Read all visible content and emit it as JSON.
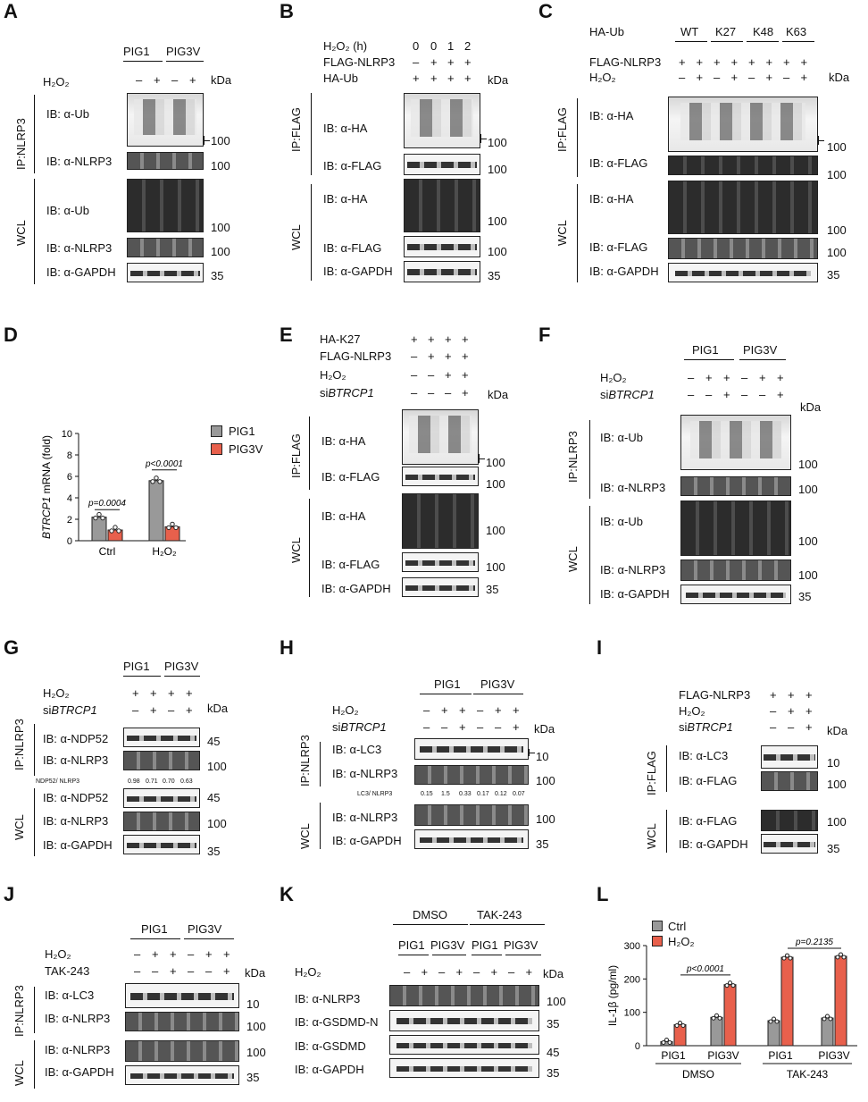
{
  "panels": {
    "A": "A",
    "B": "B",
    "C": "C",
    "D": "D",
    "E": "E",
    "F": "F",
    "G": "G",
    "H": "H",
    "I": "I",
    "J": "J",
    "K": "K",
    "L": "L"
  },
  "common": {
    "kda": "kDa",
    "h2o2": "H₂O₂",
    "m": "–",
    "p": "+",
    "w100": "100",
    "w35": "35",
    "w45": "45",
    "w10": "10",
    "pig1": "PIG1",
    "pig3v": "PIG3V",
    "ip_nlrp3": "IP:NLRP3",
    "ip_flag": "IP:FLAG",
    "wcl": "WCL",
    "ib_ub": "IB: α-Ub",
    "ib_nlrp3": "IB: α-NLRP3",
    "ib_gapdh": "IB: α-GAPDH",
    "ib_ha": "IB: α-HA",
    "ib_flag": "IB: α-FLAG",
    "ib_lc3": "IB: α-LC3",
    "ib_ndp52": "IB: α-NDP52",
    "ib_gsdmdn": "IB: α-GSDMD-N",
    "ib_gsdmd": "IB: α-GSDMD",
    "flag_nlrp3": "FLAG-NLRP3",
    "ha_ub": "HA-Ub",
    "ha_k27": "HA-K27",
    "sibtrcp1_pre": "si",
    "sibtrcp1_gene": "BTRCP1",
    "tak243": "TAK-243",
    "dmso": "DMSO"
  },
  "B": {
    "h2o2_h": "H₂O₂ (h)",
    "times": [
      "0",
      "0",
      "1",
      "2"
    ]
  },
  "C": {
    "groups": [
      "WT",
      "K27",
      "K48",
      "K63"
    ]
  },
  "G": {
    "ratio_label": "NDP52/ NLRP3",
    "ratios": [
      "0.98",
      "0.71",
      "0.70",
      "0.63"
    ]
  },
  "H": {
    "ratio_label": "LC3/ NLRP3",
    "ratios": [
      "0.15",
      "1.5",
      "0.33",
      "0.17",
      "0.12",
      "0.07"
    ]
  },
  "chart_data": [
    {
      "panel": "D",
      "type": "bar",
      "categories": [
        "Ctrl",
        "H₂O₂"
      ],
      "series": [
        {
          "name": "PIG1",
          "values": [
            2.2,
            5.6
          ],
          "color": "#999999"
        },
        {
          "name": "PIG3V",
          "values": [
            1.0,
            1.3
          ],
          "color": "#e8604c"
        }
      ],
      "ylabel_gene": "BTRCP1",
      "ylabel_rest": " mRNA (fold)",
      "ylim": [
        0,
        10
      ],
      "yticks": [
        0,
        2,
        4,
        6,
        8,
        10
      ],
      "annotations": [
        "p=0.0004",
        "p<0.0001"
      ]
    },
    {
      "panel": "L",
      "type": "bar",
      "categories": [
        "PIG1",
        "PIG3V",
        "PIG1",
        "PIG3V"
      ],
      "groups": [
        "DMSO",
        "TAK-243"
      ],
      "series": [
        {
          "name": "Ctrl",
          "values": [
            12,
            85,
            75,
            83
          ],
          "color": "#999999"
        },
        {
          "name": "H₂O₂",
          "values": [
            63,
            183,
            265,
            268
          ],
          "color": "#e8604c"
        }
      ],
      "ylabel": "IL-1β (pg/ml)",
      "ylim": [
        0,
        300
      ],
      "yticks": [
        0,
        100,
        200,
        300
      ],
      "annotations": [
        "p<0.0001",
        "p=0.2135"
      ]
    }
  ]
}
